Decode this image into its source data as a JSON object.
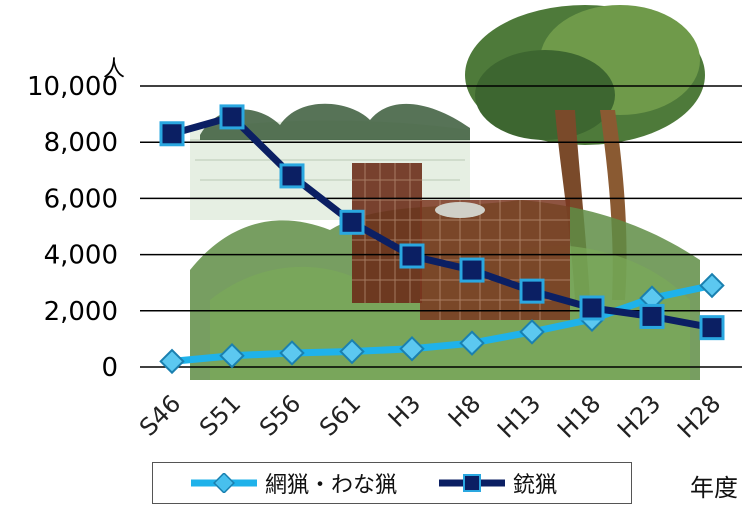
{
  "chart_data": {
    "type": "line",
    "title": "",
    "xlabel": "年度",
    "ylabel": "人",
    "ylim": [
      0,
      10000
    ],
    "yticks": [
      0,
      2000,
      4000,
      6000,
      8000,
      10000
    ],
    "ytick_labels": [
      "0",
      "2,000",
      "4,000",
      "6,000",
      "8,000",
      "10,000"
    ],
    "grid": true,
    "legend_position": "bottom",
    "categories": [
      "S46",
      "S51",
      "S56",
      "S61",
      "H3",
      "H8",
      "H13",
      "H18",
      "H23",
      "H28"
    ],
    "series": [
      {
        "name": "網猟・わな猟",
        "color": "#1fb2ea",
        "marker": "diamond",
        "values": [
          200,
          400,
          500,
          550,
          650,
          850,
          1250,
          1700,
          2450,
          2900
        ]
      },
      {
        "name": "銃猟",
        "color": "#0b1f63",
        "marker": "square",
        "values": [
          8300,
          8900,
          6800,
          5150,
          3950,
          3450,
          2700,
          2100,
          1800,
          1400
        ]
      }
    ]
  }
}
